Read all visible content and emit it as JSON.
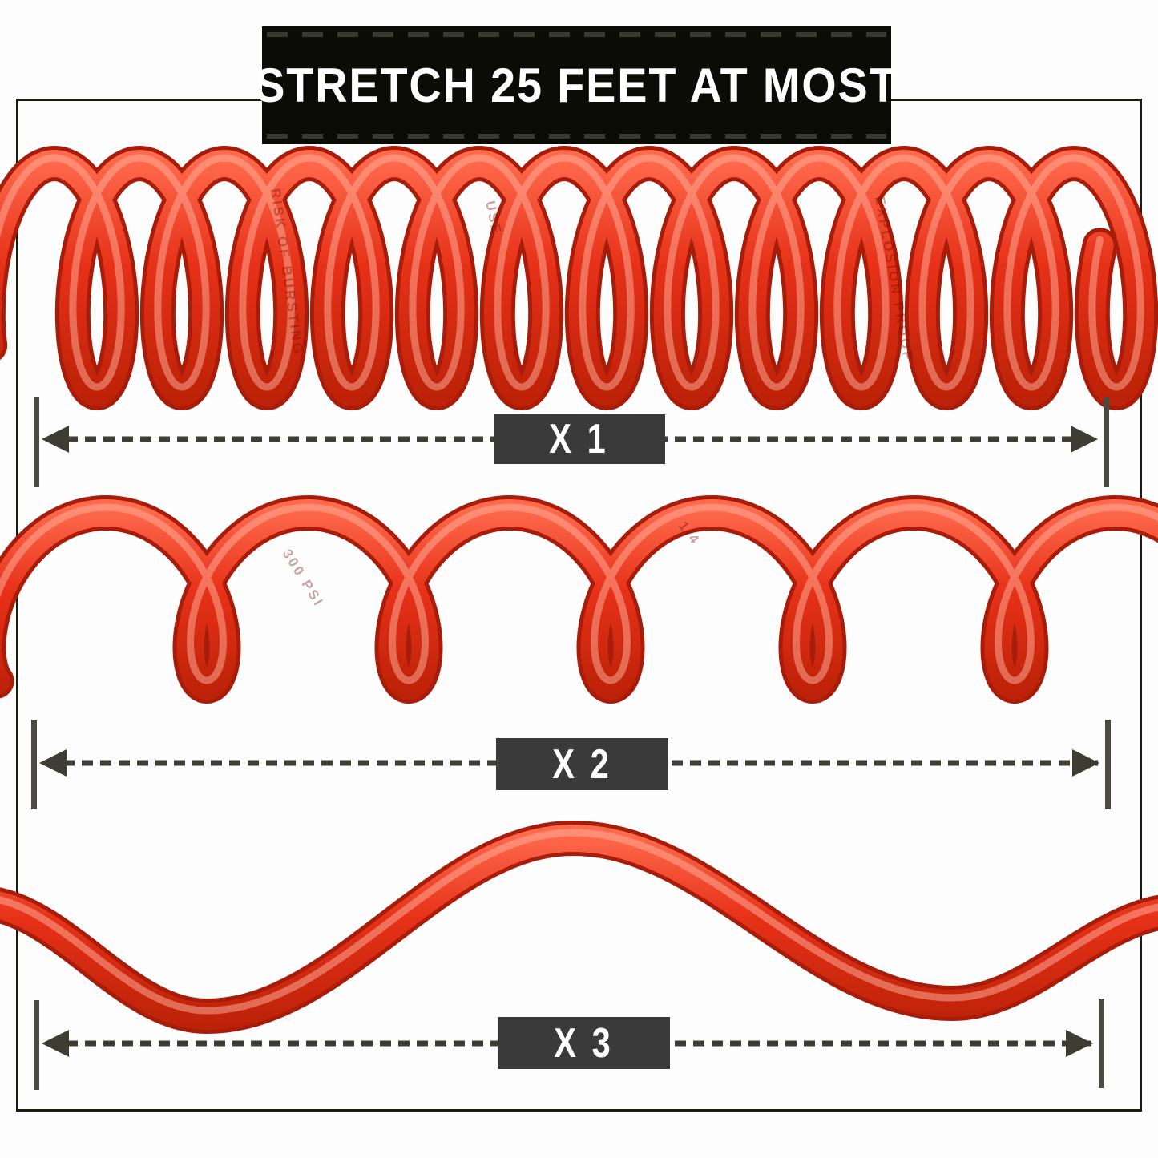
{
  "title_banner": {
    "text": "STRETCH 25 FEET AT MOST"
  },
  "measurements": [
    {
      "label": "X 1"
    },
    {
      "label": "X 2"
    },
    {
      "label": "X 3"
    }
  ],
  "hose_print_labels": [
    "RISK OF BURSTING",
    "EXPLOSION PROOF",
    "USE",
    "300 PSI",
    "1/4"
  ],
  "colors": {
    "page_bg": "#fdfdfd",
    "frame": "#1b1b10",
    "banner_bg": "#0c0c07",
    "banner_text": "#ffffff",
    "arrow": "#3d3d34",
    "cap": "#4a4a40",
    "label_box": "#3a3a3a",
    "label_text": "#ffffff",
    "hose_main": "#e63118",
    "hose_light": "#ff6a4d",
    "hose_dark": "#bd2208",
    "hose_outline": "#a81c0a",
    "hose_highlight": "#ffb29d",
    "hose_print": "#7a0e02"
  }
}
